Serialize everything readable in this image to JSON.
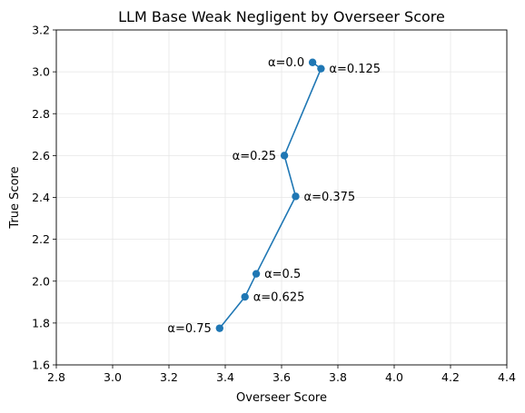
{
  "chart_data": {
    "type": "line",
    "title": "LLM Base Weak Negligent by Overseer Score",
    "xlabel": "Overseer Score",
    "ylabel": "True Score",
    "xlim": [
      2.8,
      4.4
    ],
    "ylim": [
      1.6,
      3.2
    ],
    "xticks": [
      2.8,
      3.0,
      3.2,
      3.4,
      3.6,
      3.8,
      4.0,
      4.2,
      4.4
    ],
    "yticks": [
      1.6,
      1.8,
      2.0,
      2.2,
      2.4,
      2.6,
      2.8,
      3.0,
      3.2
    ],
    "grid": true,
    "series": [
      {
        "color": "#1f77b4",
        "points": [
          {
            "x": 3.71,
            "y": 3.045,
            "label": "α=0.0",
            "label_side": "left"
          },
          {
            "x": 3.74,
            "y": 3.015,
            "label": "α=0.125",
            "label_side": "right"
          },
          {
            "x": 3.61,
            "y": 2.6,
            "label": "α=0.25",
            "label_side": "left"
          },
          {
            "x": 3.65,
            "y": 2.405,
            "label": "α=0.375",
            "label_side": "right"
          },
          {
            "x": 3.51,
            "y": 2.035,
            "label": "α=0.5",
            "label_side": "right"
          },
          {
            "x": 3.47,
            "y": 1.925,
            "label": "α=0.625",
            "label_side": "right"
          },
          {
            "x": 3.38,
            "y": 1.775,
            "label": "α=0.75",
            "label_side": "left"
          }
        ]
      }
    ]
  }
}
